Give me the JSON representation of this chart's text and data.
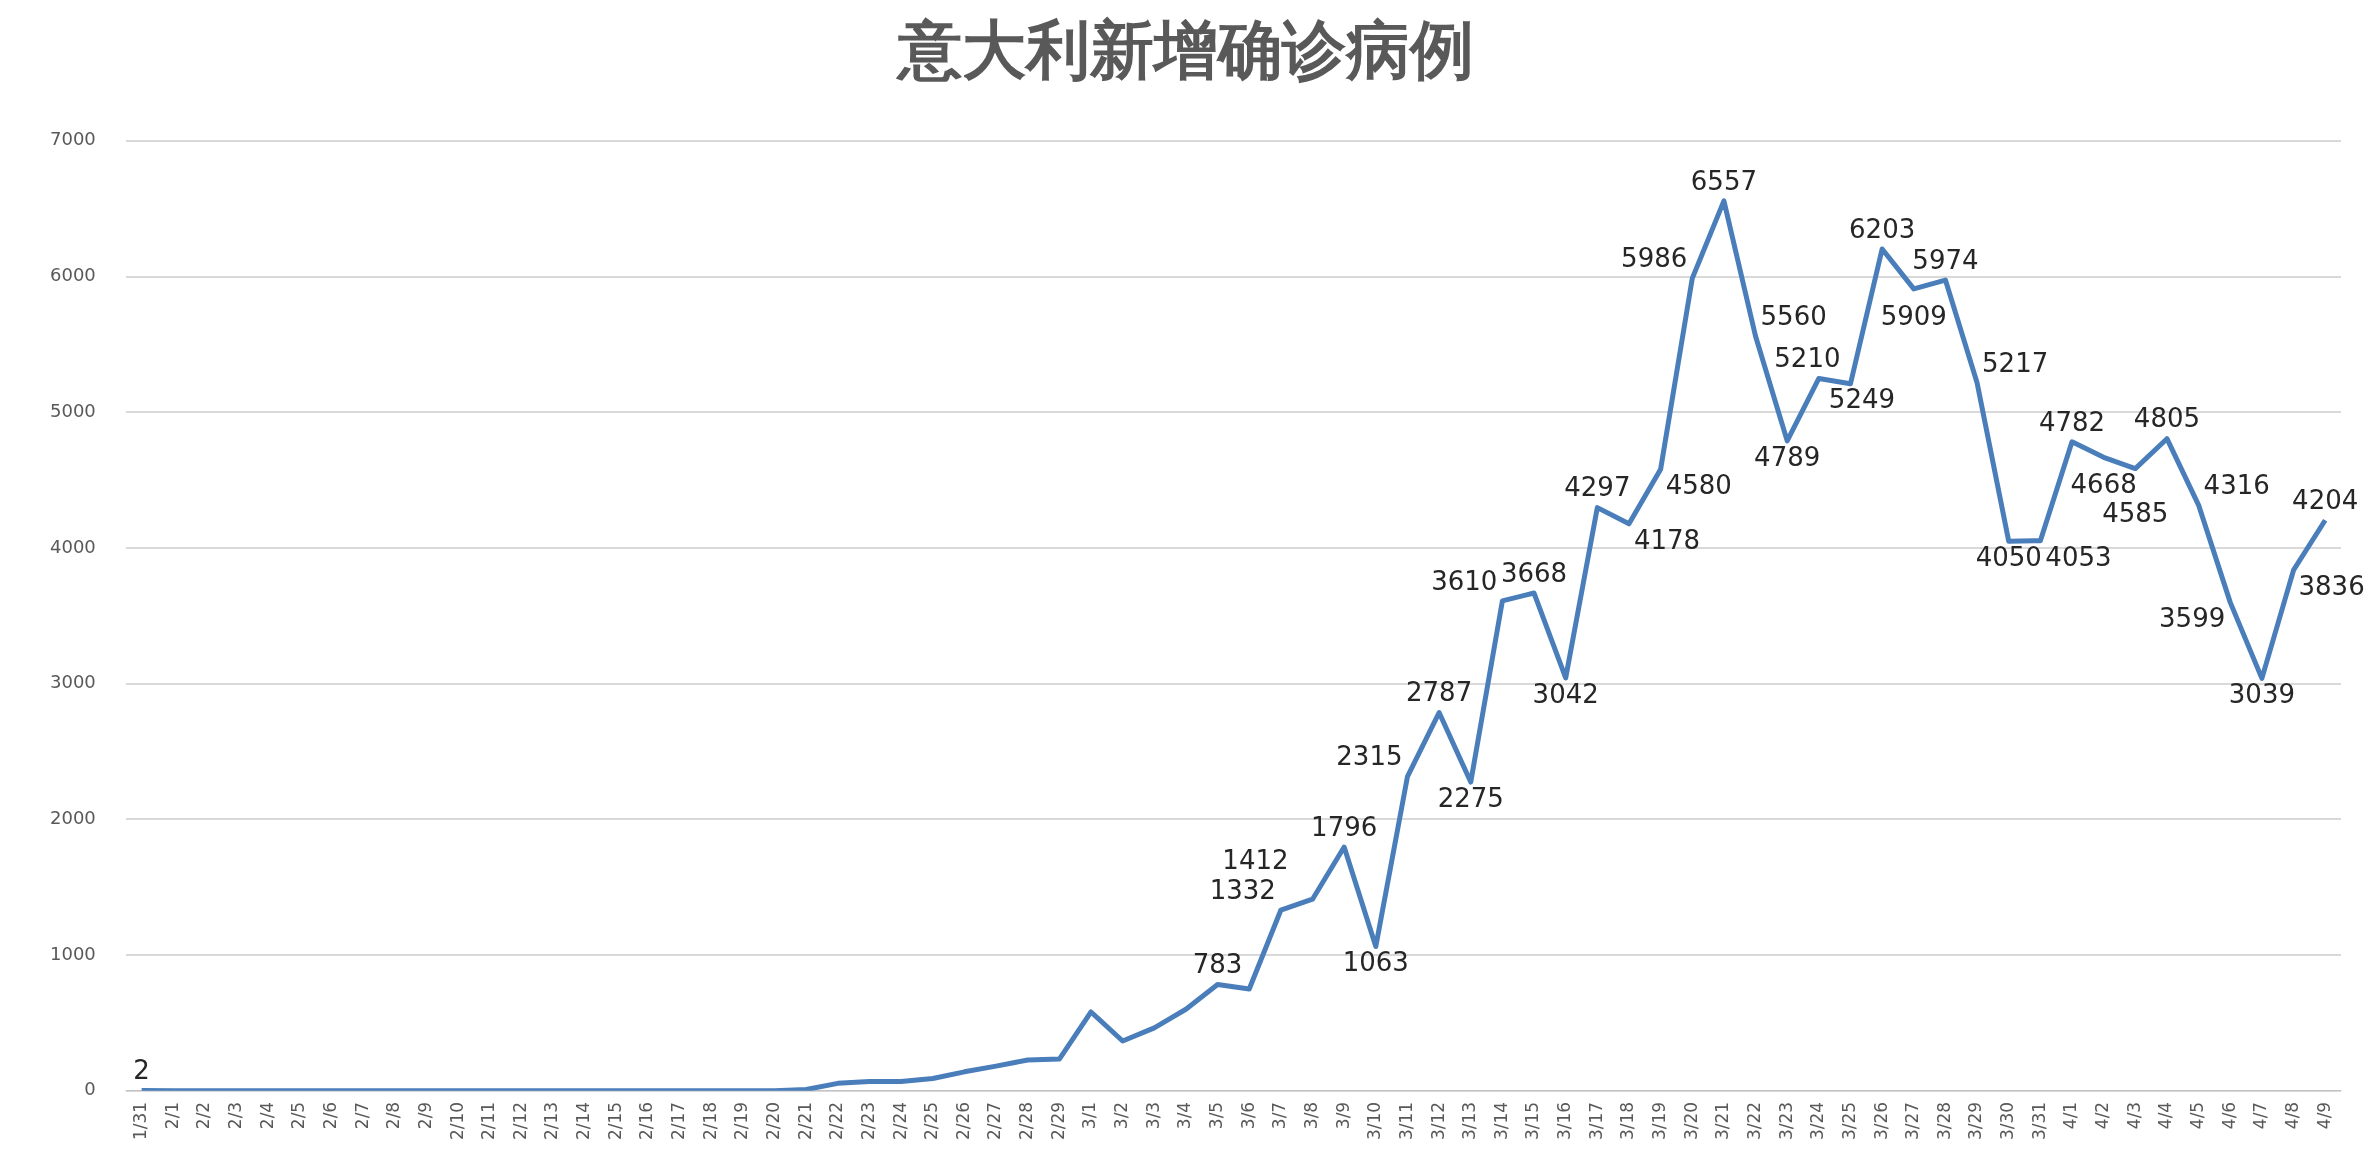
{
  "chart_data": {
    "type": "line",
    "title": "意大利新增确诊病例",
    "categories": [
      "1/31",
      "2/1",
      "2/2",
      "2/3",
      "2/4",
      "2/5",
      "2/6",
      "2/7",
      "2/8",
      "2/9",
      "2/10",
      "2/11",
      "2/12",
      "2/13",
      "2/14",
      "2/15",
      "2/16",
      "2/17",
      "2/18",
      "2/19",
      "2/20",
      "2/21",
      "2/22",
      "2/23",
      "2/24",
      "2/25",
      "2/26",
      "2/27",
      "2/28",
      "2/29",
      "3/1",
      "3/2",
      "3/3",
      "3/4",
      "3/5",
      "3/6",
      "3/7",
      "3/8",
      "3/9",
      "3/10",
      "3/11",
      "3/12",
      "3/13",
      "3/14",
      "3/15",
      "3/16",
      "3/17",
      "3/18",
      "3/19",
      "3/20",
      "3/21",
      "3/22",
      "3/23",
      "3/24",
      "3/25",
      "3/26",
      "3/27",
      "3/28",
      "3/29",
      "3/30",
      "3/31",
      "4/1",
      "4/2",
      "4/3",
      "4/4",
      "4/5",
      "4/6",
      "4/7",
      "4/8",
      "4/9"
    ],
    "series": [
      {
        "color": "#4a7ebb",
        "values": [
          2,
          0,
          0,
          0,
          0,
          0,
          0,
          0,
          0,
          0,
          0,
          0,
          0,
          0,
          0,
          0,
          0,
          0,
          0,
          0,
          0,
          10,
          55,
          68,
          68,
          91,
          140,
          182,
          227,
          234,
          581,
          367,
          464,
          601,
          783,
          750,
          1332,
          1412,
          1796,
          1063,
          2315,
          2787,
          2275,
          3610,
          3668,
          3042,
          4297,
          4178,
          4580,
          5986,
          6557,
          5560,
          4789,
          5249,
          5210,
          6203,
          5909,
          5974,
          5217,
          4050,
          4053,
          4782,
          4668,
          4585,
          4805,
          4316,
          3599,
          3039,
          3836,
          4204
        ],
        "value_labels": [
          "2",
          null,
          null,
          null,
          null,
          null,
          null,
          null,
          null,
          null,
          null,
          null,
          null,
          null,
          null,
          null,
          null,
          null,
          null,
          null,
          null,
          null,
          null,
          null,
          null,
          null,
          null,
          null,
          null,
          null,
          null,
          null,
          null,
          null,
          "783",
          null,
          "1332",
          "1412",
          "1796",
          "1063",
          "2315",
          "2787",
          "2275",
          "3610",
          "3668",
          "3042",
          "4297",
          "4178",
          "4580",
          "5986",
          "6557",
          "5560",
          "4789",
          "5249",
          "5210",
          "6203",
          "5909",
          "5974",
          "5217",
          "4050",
          "4053",
          "4782",
          "4668",
          "4585",
          "4805",
          "4316",
          "3599",
          "3039",
          "3836",
          "4204"
        ]
      }
    ],
    "ylim": [
      0,
      7000
    ],
    "yticks": [
      0,
      1000,
      2000,
      3000,
      4000,
      5000,
      6000,
      7000
    ],
    "grid": "y",
    "legend": false,
    "marker": "none",
    "line_style": "solid"
  }
}
